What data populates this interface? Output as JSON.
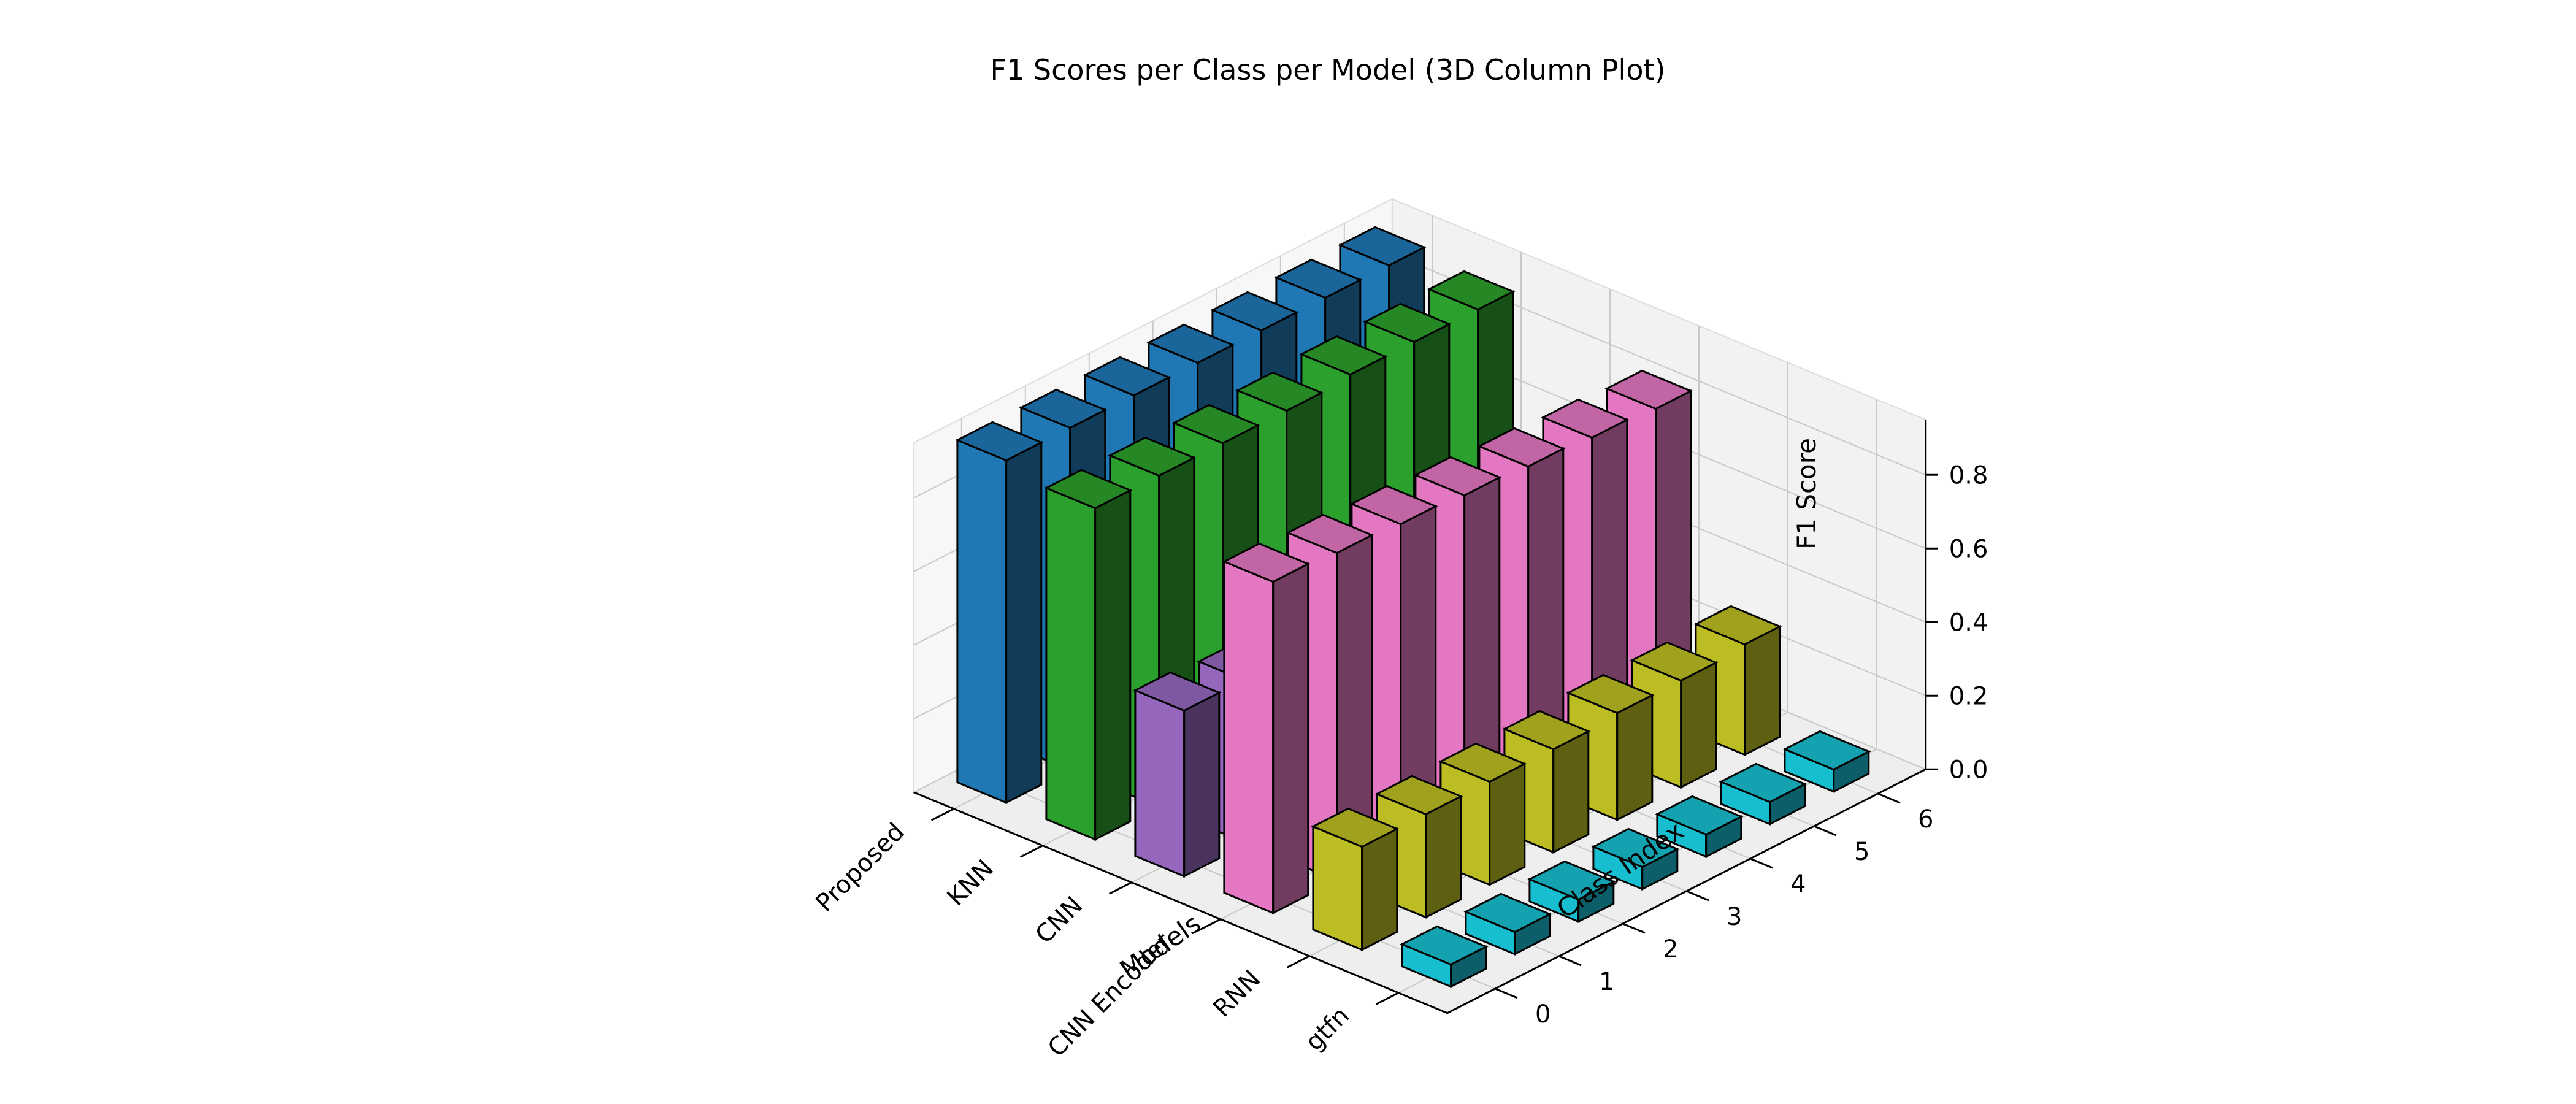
{
  "chart_data": {
    "type": "bar3d",
    "title": "F1 Scores per Class per Model (3D Column Plot)",
    "xlabel": "Models",
    "ylabel": "Class Index",
    "zlabel": "F1 Score",
    "models": [
      "Proposed",
      "KNN",
      "CNN",
      "CNN Encoder",
      "RNN",
      "gtfn"
    ],
    "classes": [
      0,
      1,
      2,
      3,
      4,
      5,
      6
    ],
    "zlim": [
      0,
      0.95
    ],
    "zticks": [
      0.0,
      0.2,
      0.4,
      0.6,
      0.8
    ],
    "grid": true,
    "series": [
      {
        "model": "Proposed",
        "color": "#1f77b4",
        "values": [
          0.93,
          0.93,
          0.93,
          0.93,
          0.93,
          0.93,
          0.93
        ]
      },
      {
        "model": "KNN",
        "color": "#2ca02c",
        "values": [
          0.9,
          0.9,
          0.9,
          0.9,
          0.91,
          0.91,
          0.91
        ]
      },
      {
        "model": "CNN",
        "color": "#9467bd",
        "values": [
          0.45,
          0.44,
          0.0,
          0.0,
          0.0,
          0.0,
          0.0
        ]
      },
      {
        "model": "CNN Encoder",
        "color": "#e377c2",
        "values": [
          0.9,
          0.89,
          0.88,
          0.87,
          0.86,
          0.85,
          0.84
        ]
      },
      {
        "model": "RNN",
        "color": "#bcbd22",
        "values": [
          0.28,
          0.28,
          0.28,
          0.28,
          0.29,
          0.29,
          0.3
        ]
      },
      {
        "model": "gtfn",
        "color": "#17becf",
        "values": [
          0.06,
          0.06,
          0.06,
          0.06,
          0.06,
          0.06,
          0.06
        ]
      }
    ]
  }
}
